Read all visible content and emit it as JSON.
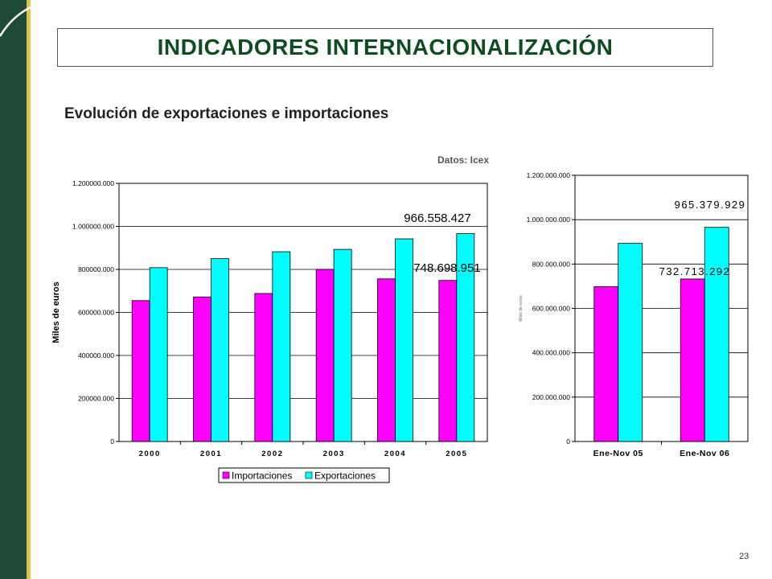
{
  "slide": {
    "title": "INDICADORES INTERNACIONALIZACIÓN",
    "subtitle": "Evolución de exportaciones e importaciones",
    "source": "Datos: Icex",
    "page_number": "23"
  },
  "colors": {
    "importaciones": "#ff00ff",
    "exportaciones": "#00ffff",
    "side_band": "#1e4a38",
    "side_stripe": "#e2c34a",
    "title": "#0d4d1f"
  },
  "chart_data": [
    {
      "type": "bar",
      "categories": [
        "2000",
        "2001",
        "2002",
        "2003",
        "2004",
        "2005"
      ],
      "series": [
        {
          "name": "Importaciones",
          "values": [
            655000000,
            672000000,
            688000000,
            800000000,
            756000000,
            748698951
          ]
        },
        {
          "name": "Exportaciones",
          "values": [
            808000000,
            850000000,
            882000000,
            893000000,
            942000000,
            966558427
          ]
        }
      ],
      "ylabel": "Miles de euros",
      "ylim": [
        0,
        1200000000
      ],
      "yticks": [
        0,
        200000000,
        400000000,
        600000000,
        800000000,
        1000000000,
        1200000000
      ],
      "ytick_labels": [
        "0",
        "200000.000",
        "400000.000",
        "600000.000",
        "800000.000",
        "1.000000.000",
        "1.200000.000"
      ],
      "annotations": [
        "966.558.427",
        "748.698.951"
      ],
      "legend": "bottom",
      "grid": true
    },
    {
      "type": "bar",
      "categories": [
        "Ene-Nov 05",
        "Ene-Nov 06"
      ],
      "series": [
        {
          "name": "Importaciones",
          "values": [
            698000000,
            732713292
          ]
        },
        {
          "name": "Exportaciones",
          "values": [
            893000000,
            965379929
          ]
        }
      ],
      "ylabel": "Miles de euros",
      "ylim": [
        0,
        1200000000
      ],
      "yticks": [
        0,
        200000000,
        400000000,
        600000000,
        800000000,
        1000000000,
        1200000000
      ],
      "ytick_labels": [
        "0",
        "200.000.000",
        "400.000.000",
        "600.000.000",
        "800.000.000",
        "1.000.000.000",
        "1.200.000.000"
      ],
      "annotations": [
        "965.379.929",
        "732.713.292"
      ],
      "grid": true
    }
  ]
}
